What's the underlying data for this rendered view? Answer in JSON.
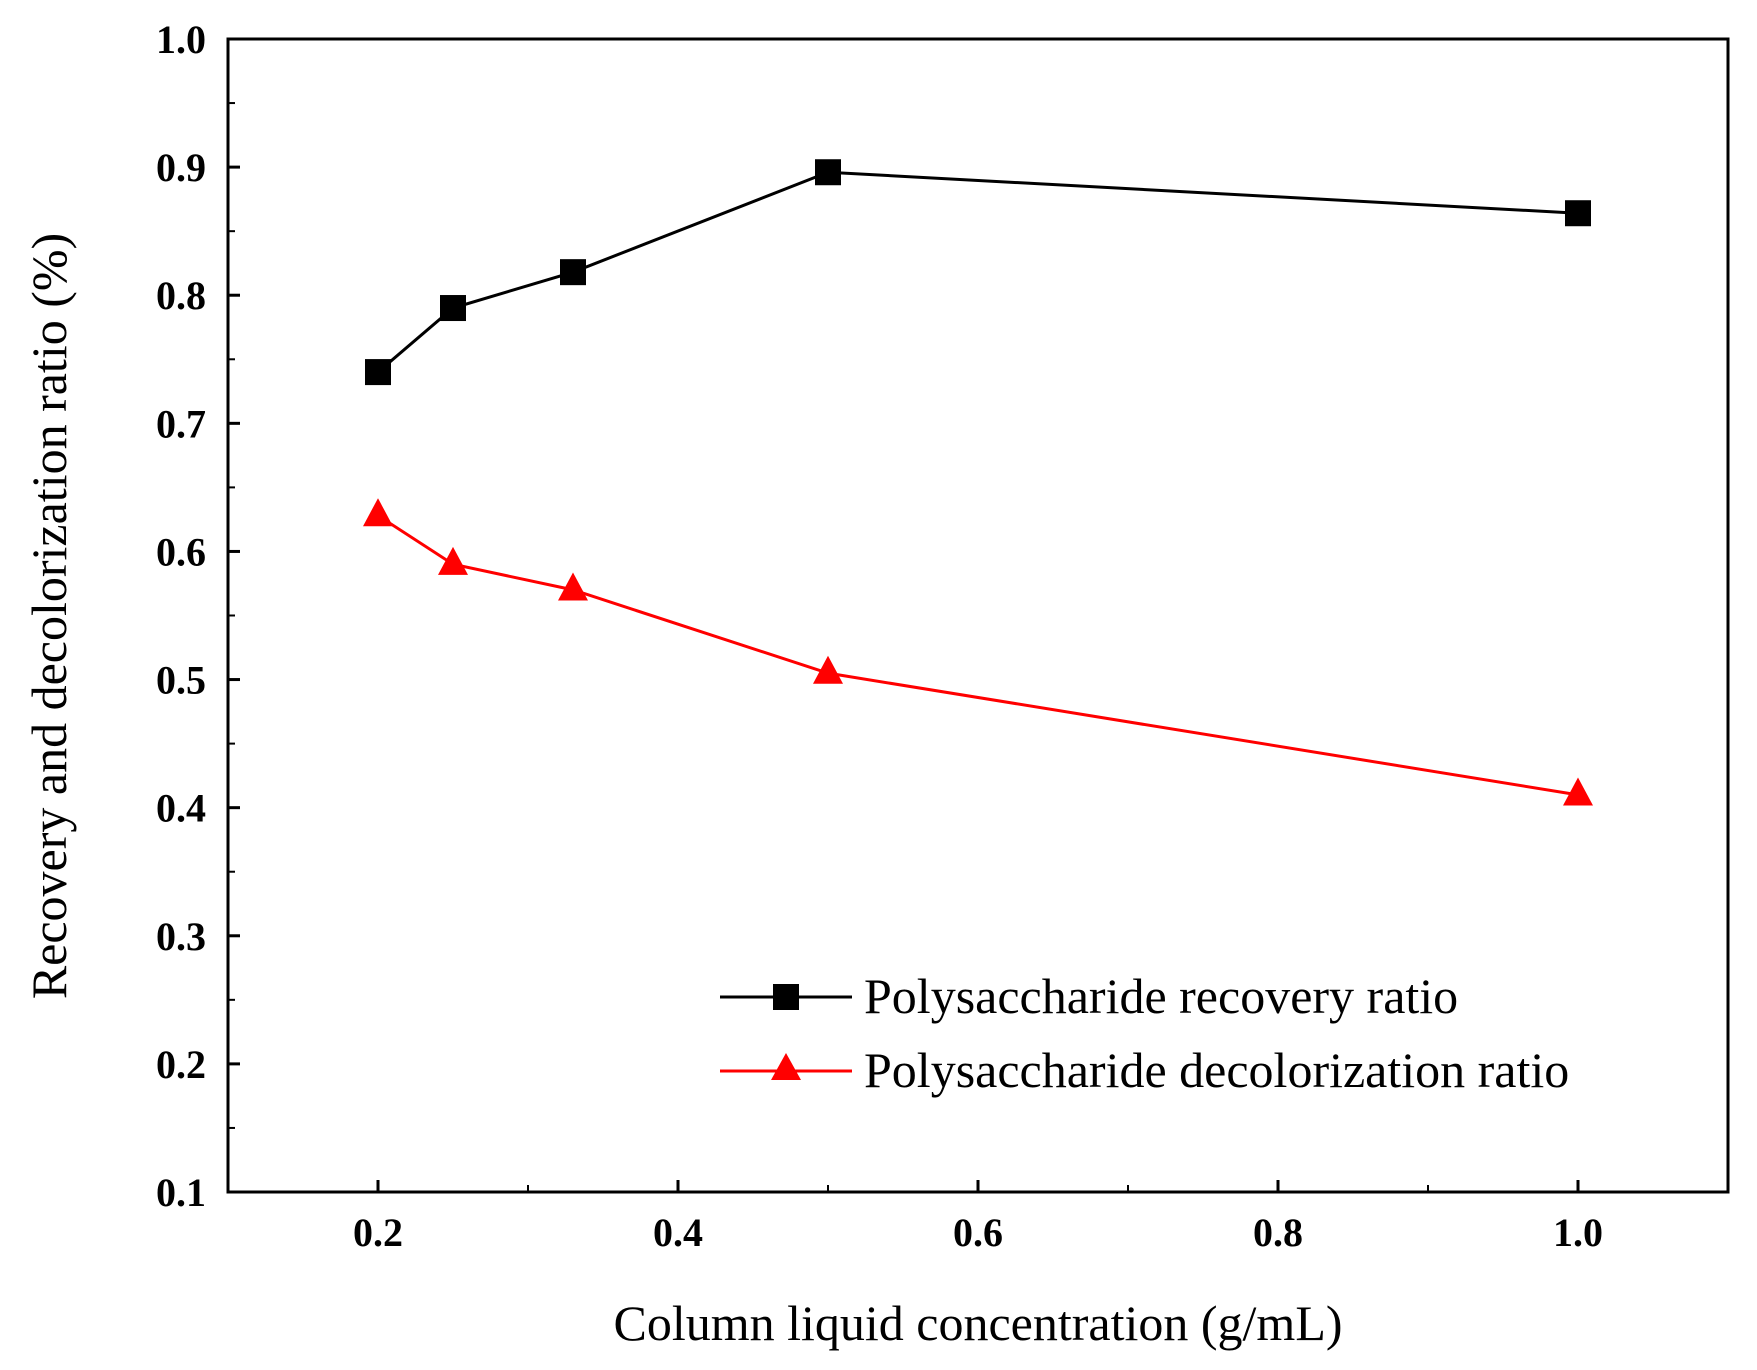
{
  "chart_data": {
    "type": "line",
    "title": "",
    "xlabel": "Column liquid concentration (g/mL)",
    "ylabel": "Recovery and decolorization ratio (%)",
    "xlim": [
      0.1,
      1.1
    ],
    "ylim": [
      0.1,
      1.0
    ],
    "xticks": [
      "0.2",
      "0.4",
      "0.6",
      "0.8",
      "1.0"
    ],
    "yticks": [
      "0.1",
      "0.2",
      "0.3",
      "0.4",
      "0.5",
      "0.6",
      "0.7",
      "0.8",
      "0.9",
      "1.0"
    ],
    "x": [
      0.2,
      0.25,
      0.33,
      0.5,
      1.0
    ],
    "series": [
      {
        "name": "Polysaccharide recovery ratio",
        "marker": "square",
        "color": "#000000",
        "values": [
          0.74,
          0.79,
          0.818,
          0.896,
          0.864
        ]
      },
      {
        "name": "Polysaccharide decolorization ratio",
        "marker": "triangle",
        "color": "#ff0000",
        "values": [
          0.628,
          0.59,
          0.57,
          0.505,
          0.41
        ]
      }
    ],
    "grid": false,
    "legend_position": "bottom-right"
  }
}
